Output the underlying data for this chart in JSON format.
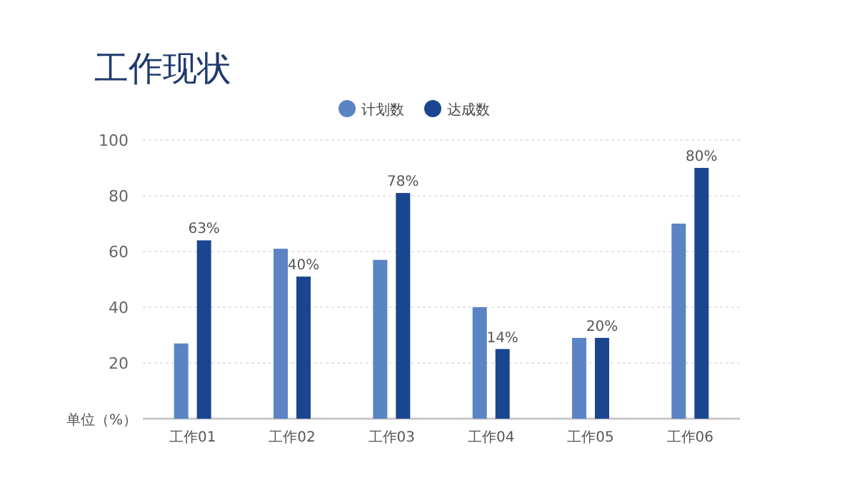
{
  "chart_data": {
    "type": "bar",
    "title": "工作现状",
    "categories": [
      "工作01",
      "工作02",
      "工作03",
      "工作04",
      "工作05",
      "工作06"
    ],
    "series": [
      {
        "name": "计划数",
        "color": "#5b84c4",
        "values": [
          27,
          61,
          57,
          40,
          29,
          70
        ]
      },
      {
        "name": "达成数",
        "color": "#1a4690",
        "values": [
          64,
          51,
          81,
          25,
          29,
          90
        ]
      }
    ],
    "ylim": [
      0,
      100
    ],
    "yticks": [
      20,
      40,
      60,
      80,
      100
    ],
    "grid": "y",
    "legend": "top",
    "annotations": [
      "单位（%）",
      {
        "text": "63%",
        "x": "工作01",
        "y": 64
      },
      {
        "text": "40%",
        "x": "工作02",
        "y": 51
      },
      {
        "text": "78%",
        "x": "工作03",
        "y": 81
      },
      {
        "text": "14%",
        "x": "工作04",
        "y": 25
      },
      {
        "text": "20%",
        "x": "工作05",
        "y": 29
      },
      {
        "text": "80%",
        "x": "工作06",
        "y": 90
      }
    ]
  }
}
